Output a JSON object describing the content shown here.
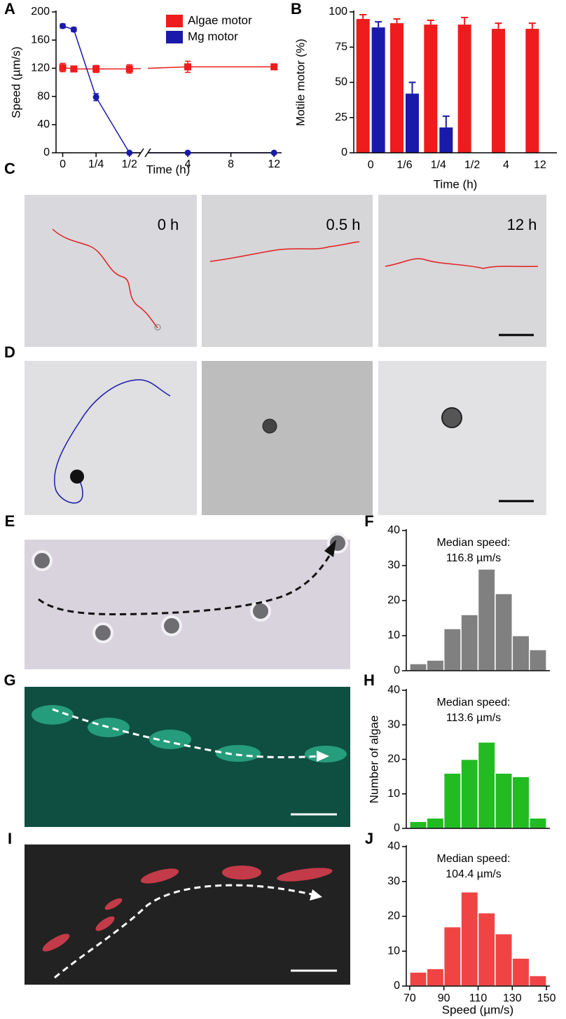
{
  "panel_labels": [
    "A",
    "B",
    "C",
    "D",
    "E",
    "F",
    "G",
    "H",
    "I",
    "J"
  ],
  "image_labels": [
    "0 h",
    "0.5 h",
    "12 h"
  ],
  "chart_data": [
    {
      "type": "line",
      "xlabel": "Time (h)",
      "ylabel": "Speed (µm/s)",
      "x": [
        0,
        0.083,
        0.25,
        0.5,
        4,
        12
      ],
      "xlim_segments": [
        [
          -0.05,
          0.58
        ],
        [
          0.36,
          12.7
        ]
      ],
      "xticks": [
        0,
        {
          "value": 0.25,
          "label": "1/4"
        },
        {
          "value": 0.5,
          "label": "1/2"
        },
        4,
        8,
        12
      ],
      "ylim": [
        0,
        200
      ],
      "yticks": [
        0,
        40,
        80,
        120,
        160,
        200
      ],
      "legend": "upper right",
      "series": [
        {
          "name": "Algae motor",
          "color": "#ee1c1c",
          "marker": "square",
          "values": [
            121,
            119,
            119,
            119,
            122,
            122
          ],
          "errors": [
            6,
            3,
            5,
            6,
            8,
            2
          ]
        },
        {
          "name": "Mg motor",
          "color": "#1a1aaa",
          "marker": "circle",
          "values": [
            180,
            175,
            79,
            0,
            0,
            0
          ],
          "errors": [
            3,
            3,
            5,
            0,
            0,
            0
          ]
        }
      ]
    },
    {
      "type": "bar",
      "xlabel": "Time (h)",
      "ylabel": "Motile motor (%)",
      "categories": [
        "0",
        "1/6",
        "1/4",
        "1/2",
        "4",
        "12"
      ],
      "ylim": [
        0,
        100
      ],
      "yticks": [
        0,
        25,
        50,
        75,
        100
      ],
      "series": [
        {
          "color": "#ee1c1c",
          "values": [
            95,
            92,
            91,
            91,
            88,
            88
          ],
          "errors": [
            3,
            3,
            3,
            5,
            4,
            4
          ]
        },
        {
          "color": "#1a1aaa",
          "values": [
            89,
            42,
            18,
            null,
            null,
            null
          ],
          "errors": [
            4,
            8,
            8,
            null,
            null,
            null
          ]
        }
      ]
    },
    {
      "type": "histogram",
      "annotation": [
        "Median speed:",
        "116.8 µm/s"
      ],
      "bins": [
        70,
        80,
        90,
        100,
        110,
        120,
        130,
        140,
        150
      ],
      "counts": [
        2,
        3,
        12,
        16,
        29,
        22,
        10,
        6
      ],
      "color": "#808080",
      "xlim": [
        68,
        152
      ],
      "ylim": [
        0,
        40
      ],
      "yticks": [
        0,
        10,
        20,
        30,
        40
      ]
    },
    {
      "type": "histogram",
      "annotation": [
        "Median speed:",
        "113.6 µm/s"
      ],
      "ylabel": "Number of algae",
      "bins": [
        70,
        80,
        90,
        100,
        110,
        120,
        130,
        140,
        150
      ],
      "counts": [
        2,
        3,
        16,
        20,
        25,
        16,
        15,
        3
      ],
      "color": "#22bb22",
      "xlim": [
        68,
        152
      ],
      "ylim": [
        0,
        40
      ],
      "yticks": [
        0,
        10,
        20,
        30,
        40
      ]
    },
    {
      "type": "histogram",
      "annotation": [
        "Median speed:",
        "104.4 µm/s"
      ],
      "xlabel": "Speed (µm/s)",
      "bins": [
        70,
        80,
        90,
        100,
        110,
        120,
        130,
        140,
        150
      ],
      "counts": [
        4,
        5,
        17,
        27,
        21,
        15,
        8,
        3
      ],
      "color": "#f04444",
      "xlim": [
        68,
        152
      ],
      "xticks": [
        70,
        90,
        110,
        130,
        150
      ],
      "ylim": [
        0,
        40
      ],
      "yticks": [
        0,
        10,
        20,
        30,
        40
      ]
    }
  ]
}
